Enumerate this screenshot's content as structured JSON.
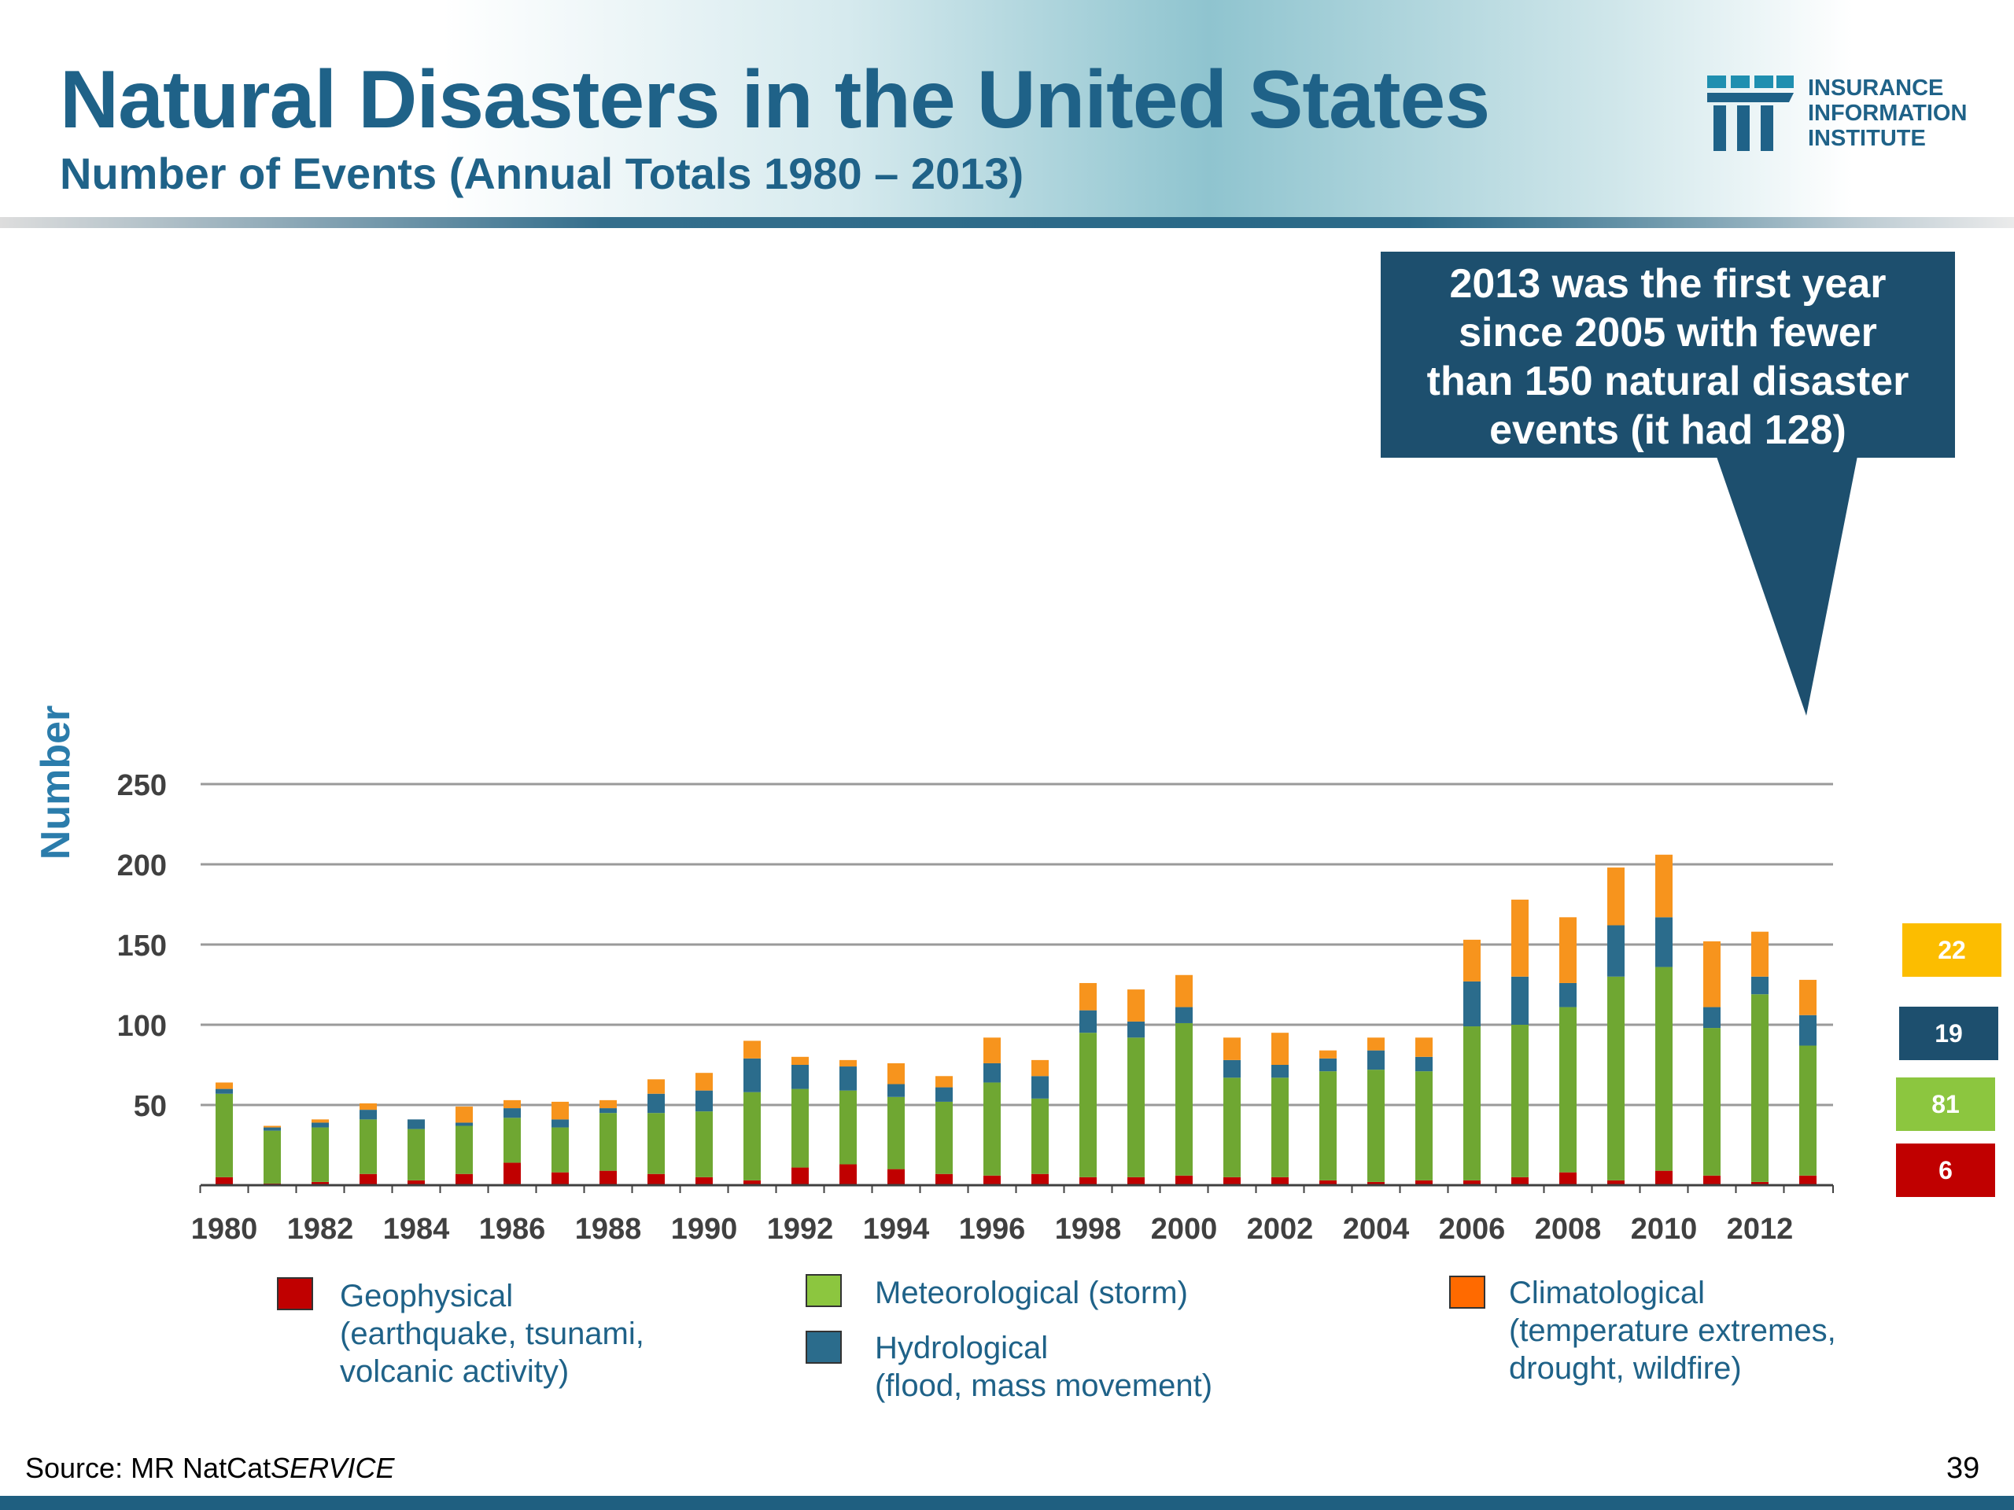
{
  "header": {
    "title": "Natural Disasters in the United States",
    "subtitle": "Number of Events (Annual Totals 1980 – 2013)"
  },
  "logo": {
    "lines": [
      "INSURANCE",
      "INFORMATION",
      "INSTITUTE"
    ]
  },
  "annotation": {
    "lines": [
      "2013 was the first year",
      "since 2005 with fewer",
      "than 150 natural disaster",
      "events (it had 128)"
    ]
  },
  "badges": [
    {
      "label": "22",
      "color": "#fcbd00"
    },
    {
      "label": "19",
      "color": "#1d4f6e"
    },
    {
      "label": "81",
      "color": "#8cc63f"
    },
    {
      "label": "6",
      "color": "#c00000"
    }
  ],
  "legend": [
    {
      "name": "Geophysical",
      "detail": [
        "(earthquake, tsunami,",
        "volcanic activity)"
      ],
      "color": "#c00000"
    },
    {
      "name": "Meteorological (storm)",
      "detail": [],
      "color": "#6fa732"
    },
    {
      "name": "Hydrological",
      "detail": [
        "(flood, mass movement)"
      ],
      "color": "#2b6c8c"
    },
    {
      "name": "Climatological",
      "detail": [
        "(temperature extremes,",
        "drought, wildfire)"
      ],
      "color": "#f7941d"
    }
  ],
  "source": {
    "prefix": "Source: MR NatCat",
    "italic": "SERVICE"
  },
  "page_number": "39",
  "chart_data": {
    "type": "bar",
    "stacked": true,
    "title": "",
    "xlabel": "",
    "ylabel": "Number",
    "ylim": [
      0,
      260
    ],
    "yticks": [
      50,
      100,
      150,
      200,
      250
    ],
    "grid": true,
    "x": [
      1980,
      1981,
      1982,
      1983,
      1984,
      1985,
      1986,
      1987,
      1988,
      1989,
      1990,
      1991,
      1992,
      1993,
      1994,
      1995,
      1996,
      1997,
      1998,
      1999,
      2000,
      2001,
      2002,
      2003,
      2004,
      2005,
      2006,
      2007,
      2008,
      2009,
      2010,
      2011,
      2012,
      2013
    ],
    "xtick_labels": [
      "1980",
      "1982",
      "1984",
      "1986",
      "1988",
      "1990",
      "1992",
      "1994",
      "1996",
      "1998",
      "2000",
      "2002",
      "2004",
      "2006",
      "2008",
      "2010",
      "2012"
    ],
    "series": [
      {
        "name": "Geophysical",
        "color": "#c00000",
        "values": [
          5,
          1,
          2,
          7,
          3,
          7,
          14,
          8,
          9,
          7,
          5,
          3,
          11,
          13,
          10,
          7,
          6,
          7,
          5,
          5,
          6,
          5,
          5,
          3,
          2,
          3,
          3,
          5,
          8,
          3,
          9,
          6,
          2,
          6
        ]
      },
      {
        "name": "Meteorological (storm)",
        "color": "#6fa732",
        "values": [
          52,
          33,
          34,
          34,
          32,
          30,
          28,
          28,
          36,
          38,
          41,
          55,
          49,
          46,
          45,
          45,
          58,
          47,
          90,
          87,
          95,
          62,
          62,
          68,
          70,
          68,
          96,
          95,
          103,
          127,
          127,
          92,
          117,
          81
        ]
      },
      {
        "name": "Hydrological",
        "color": "#2b6c8c",
        "values": [
          3,
          2,
          3,
          6,
          6,
          2,
          6,
          5,
          3,
          12,
          13,
          21,
          15,
          15,
          8,
          9,
          12,
          14,
          14,
          10,
          10,
          11,
          8,
          8,
          12,
          9,
          28,
          30,
          15,
          32,
          31,
          13,
          11,
          19
        ]
      },
      {
        "name": "Climatological",
        "color": "#f7941d",
        "values": [
          4,
          1,
          2,
          4,
          0,
          10,
          5,
          11,
          5,
          9,
          11,
          11,
          5,
          4,
          13,
          7,
          16,
          10,
          17,
          20,
          20,
          14,
          20,
          5,
          8,
          12,
          26,
          48,
          41,
          36,
          39,
          41,
          28,
          22
        ]
      }
    ]
  }
}
